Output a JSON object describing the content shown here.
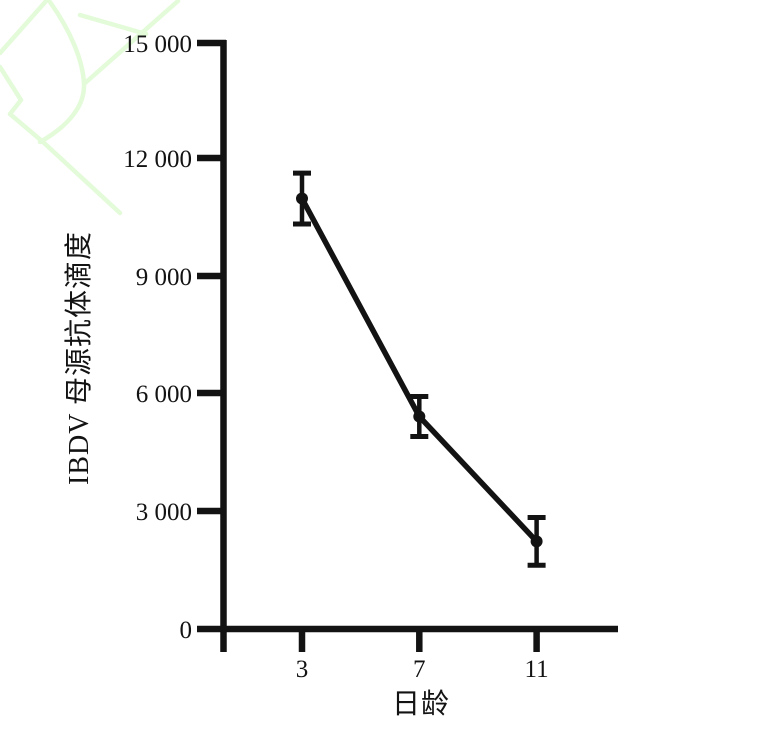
{
  "figure": {
    "background": "#ffffff",
    "ink_color": "#131313",
    "watermark_color": "#e3fbd9"
  },
  "chart_data": {
    "type": "line",
    "title": "",
    "xlabel": "日龄",
    "ylabel": "IBDV 母源抗体滴度",
    "categories": [
      3,
      7,
      11
    ],
    "x_tick_labels": [
      "3",
      "7",
      "11"
    ],
    "y_tick_labels": [
      "15 000",
      "12 000",
      "9 000",
      "6 000",
      "3 000",
      "0"
    ],
    "ylim": [
      0,
      15000
    ],
    "y_tick_step": 3000,
    "grid": false,
    "legend": false,
    "marker": "circle",
    "error_bars": true,
    "values": [
      11000,
      5430,
      2240
    ],
    "errors": [
      650,
      510,
      610
    ]
  }
}
